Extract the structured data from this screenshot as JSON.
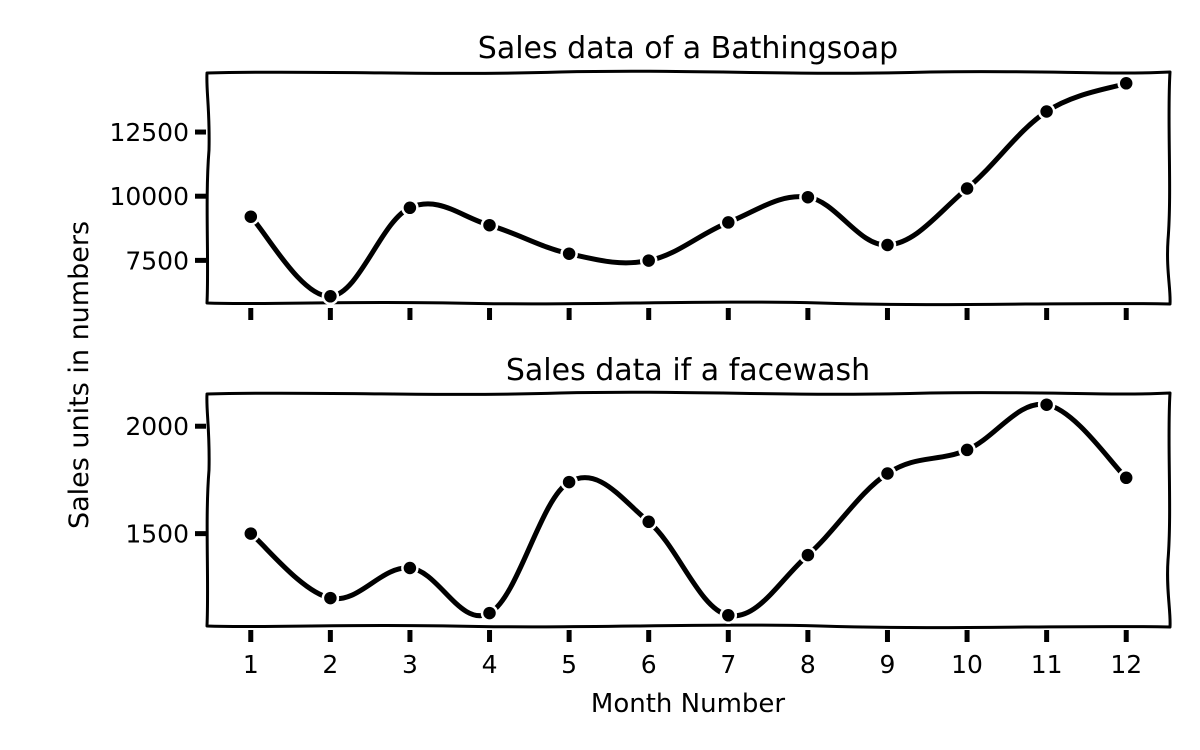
{
  "figure": {
    "ylabel": "Sales units in numbers",
    "xlabel": "Month Number"
  },
  "chart_data": [
    {
      "type": "line",
      "title": "Sales data of a Bathingsoap",
      "x": [
        1,
        2,
        3,
        4,
        5,
        6,
        7,
        8,
        9,
        10,
        11,
        12
      ],
      "series": [
        {
          "values": [
            9200,
            6100,
            9550,
            8870,
            7760,
            7490,
            8980,
            9960,
            8100,
            10300,
            13300,
            14400
          ]
        }
      ],
      "yticks": [
        7500,
        10000,
        12500
      ],
      "ylim": [
        5800,
        14800
      ],
      "xlim": [
        0.45,
        12.55
      ],
      "show_xtick_labels": false,
      "grid": false,
      "marker": "circle"
    },
    {
      "type": "line",
      "title": "Sales data if a facewash",
      "x": [
        1,
        2,
        3,
        4,
        5,
        6,
        7,
        8,
        9,
        10,
        11,
        12
      ],
      "series": [
        {
          "values": [
            1500,
            1200,
            1340,
            1130,
            1740,
            1555,
            1120,
            1400,
            1780,
            1890,
            2100,
            1760
          ]
        }
      ],
      "yticks": [
        1500,
        2000
      ],
      "ylim": [
        1070,
        2150
      ],
      "xlim": [
        0.45,
        12.55
      ],
      "xticks": [
        1,
        2,
        3,
        4,
        5,
        6,
        7,
        8,
        9,
        10,
        11,
        12
      ],
      "show_xtick_labels": true,
      "grid": false,
      "marker": "circle"
    }
  ]
}
